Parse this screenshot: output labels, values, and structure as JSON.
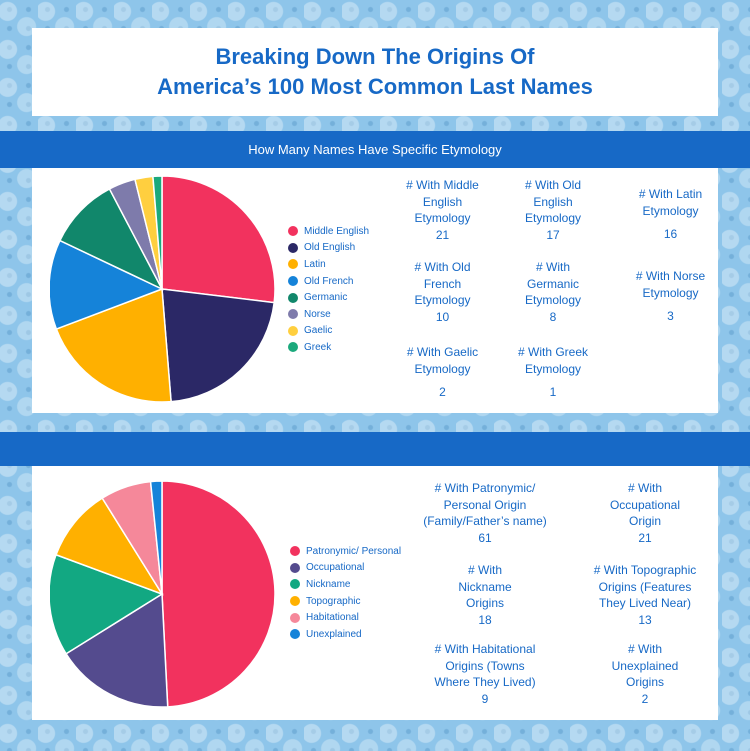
{
  "title": {
    "line1": "Breaking Down The Origins Of",
    "line2": "America’s 100 Most Common Last Names"
  },
  "section1": {
    "header": "How Many Names Have Specific Etymology",
    "stats": [
      {
        "label": "# With Middle\nEnglish\nEtymology",
        "value": "21"
      },
      {
        "label": "# With Old\nEnglish\nEtymology",
        "value": "17"
      },
      {
        "label": "# With Latin\nEtymology",
        "value": "16"
      },
      {
        "label": "# With Old\nFrench\nEtymology",
        "value": "10"
      },
      {
        "label": "# With\nGermanic\nEtymology",
        "value": "8"
      },
      {
        "label": "# With Norse\nEtymology",
        "value": "3"
      },
      {
        "label": "# With Gaelic\nEtymology",
        "value": "2"
      },
      {
        "label": "# With Greek\nEtymology",
        "value": "1"
      }
    ]
  },
  "section2": {
    "header": "",
    "stats": [
      {
        "label": "# With Patronymic/\nPersonal Origin\n(Family/Father’s name)",
        "value": "61"
      },
      {
        "label": "# With\nOccupational\nOrigin",
        "value": "21"
      },
      {
        "label": "# With\nNickname\nOrigins",
        "value": "18"
      },
      {
        "label": "# With Topographic\nOrigins (Features\nThey Lived Near)",
        "value": "13"
      },
      {
        "label": "# With Habitational\nOrigins (Towns\nWhere They Lived)",
        "value": "9"
      },
      {
        "label": "# With\nUnexplained\nOrigins",
        "value": "2"
      }
    ]
  },
  "chart_data": [
    {
      "type": "pie",
      "title": "How Many Names Have Specific Etymology",
      "categories": [
        "Middle English",
        "Old English",
        "Latin",
        "Old French",
        "Germanic",
        "Norse",
        "Gaelic",
        "Greek"
      ],
      "values": [
        21,
        17,
        16,
        10,
        8,
        3,
        2,
        1
      ],
      "colors": [
        "#f2325e",
        "#2b2866",
        "#ffb000",
        "#1583d9",
        "#11876b",
        "#7e7bab",
        "#ffcf3f",
        "#1ba97c"
      ],
      "legend_position": "right"
    },
    {
      "type": "pie",
      "title": "",
      "categories": [
        "Patronymic/ Personal",
        "Occupational",
        "Nickname",
        "Topographic",
        "Habitational",
        "Unexplained"
      ],
      "values": [
        61,
        21,
        18,
        13,
        9,
        2
      ],
      "colors": [
        "#f2325e",
        "#544b8e",
        "#12a882",
        "#ffb000",
        "#f5889a",
        "#1583d9"
      ],
      "legend_position": "right"
    }
  ]
}
